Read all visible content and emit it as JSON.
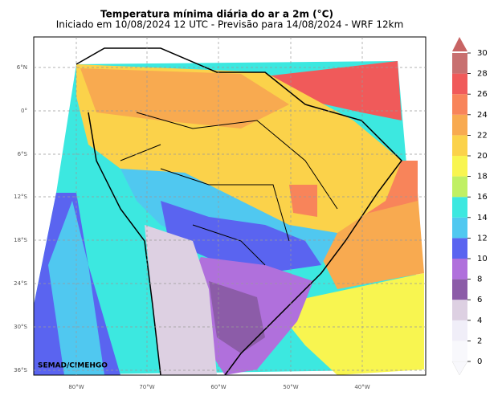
{
  "header": {
    "title": "Temperatura mínima diária do ar a 2m (°C)",
    "subtitle": "Iniciado em 10/08/2024 12 UTC - Previsão para 14/08/2024 - WRF 12km"
  },
  "map": {
    "lat_labels": [
      "6°N",
      "0°",
      "6°S",
      "12°S",
      "18°S",
      "24°S",
      "30°S",
      "36°S"
    ],
    "lon_labels": [
      "80°W",
      "70°W",
      "60°W",
      "50°W",
      "40°W"
    ],
    "credit": "SEMAD/CIMEHGO"
  },
  "colorbar": {
    "range": [
      0,
      30
    ],
    "ticks": [
      0,
      2,
      4,
      6,
      8,
      10,
      12,
      14,
      16,
      18,
      20,
      22,
      24,
      26,
      28,
      30
    ],
    "colors": [
      "#f8f8fc",
      "#f0eef8",
      "#ddd0e2",
      "#8c5ca8",
      "#b070dc",
      "#5a64f0",
      "#50c8f0",
      "#3ce8e0",
      "#c0f064",
      "#f8f550",
      "#fbd24a",
      "#f8aa50",
      "#f8845a",
      "#f05a5a",
      "#c87070"
    ]
  }
}
